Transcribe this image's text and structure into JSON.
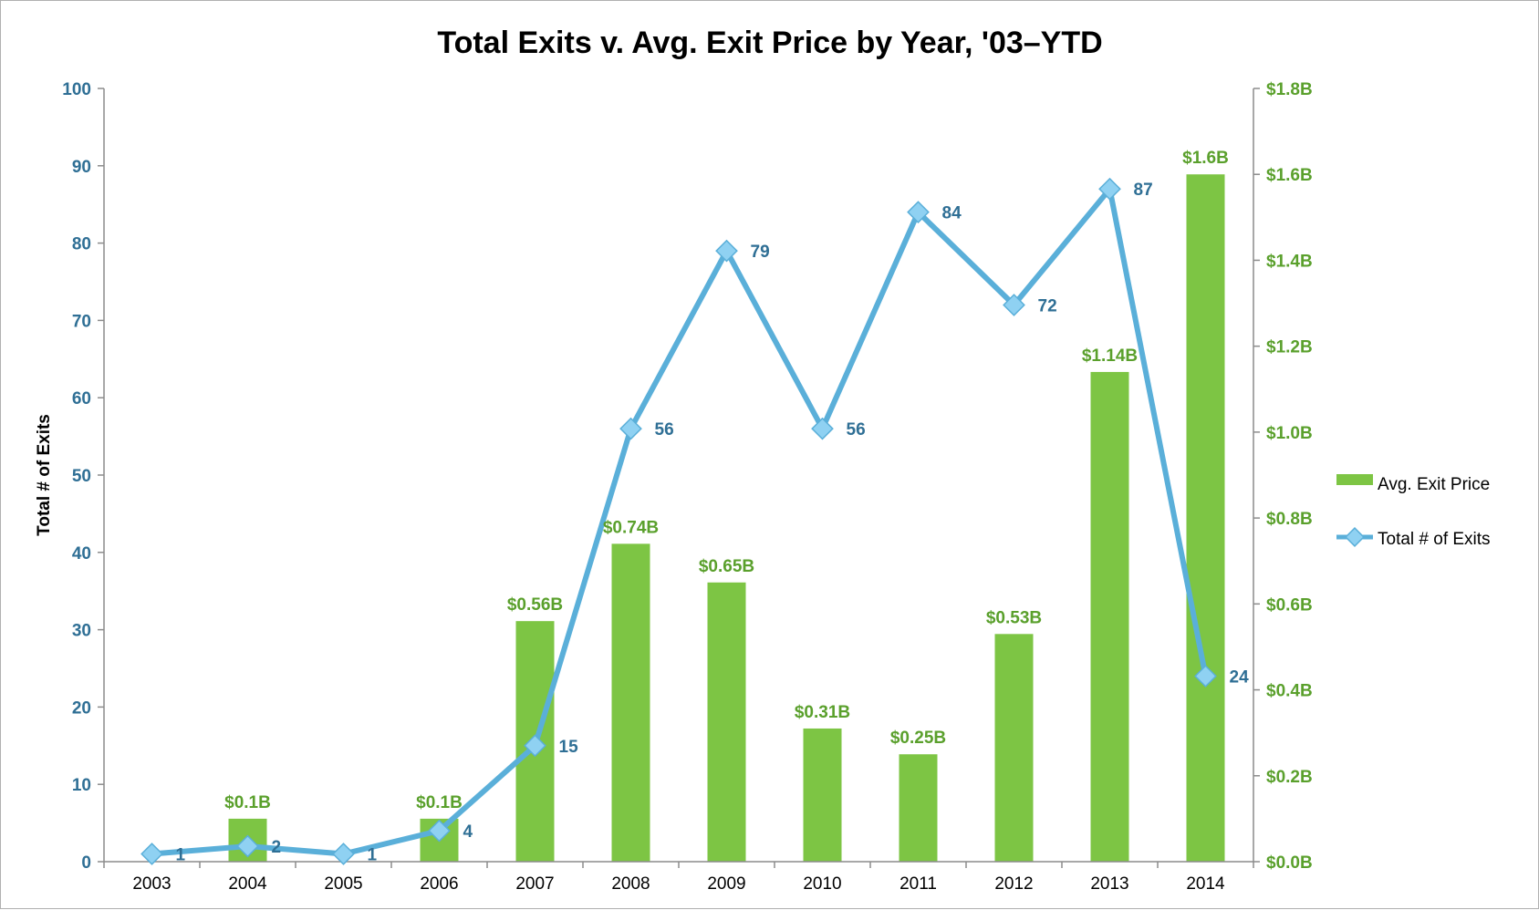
{
  "chart_data": {
    "type": "bar",
    "title": "Total Exits v. Avg. Exit Price by Year, '03–YTD",
    "categories": [
      "2003",
      "2004",
      "2005",
      "2006",
      "2007",
      "2008",
      "2009",
      "2010",
      "2011",
      "2012",
      "2013",
      "2014"
    ],
    "series": [
      {
        "name": "Avg. Exit Price",
        "type": "bar",
        "axis": "right",
        "color": "#7dc544",
        "values": [
          0,
          0.1,
          0,
          0.1,
          0.56,
          0.74,
          0.65,
          0.31,
          0.25,
          0.53,
          1.14,
          1.6
        ],
        "labels": [
          "",
          "$0.1B",
          "",
          "$0.1B",
          "$0.56B",
          "$0.74B",
          "$0.65B",
          "$0.31B",
          "$0.25B",
          "$0.53B",
          "$1.14B",
          "$1.6B"
        ]
      },
      {
        "name": "Total # of Exits",
        "type": "line",
        "axis": "left",
        "color": "#5aafd9",
        "values": [
          1,
          2,
          1,
          4,
          15,
          56,
          79,
          56,
          84,
          72,
          87,
          24
        ],
        "labels": [
          "1",
          "2",
          "1",
          "4",
          "15",
          "56",
          "79",
          "56",
          "84",
          "72",
          "87",
          "24"
        ]
      }
    ],
    "ylabel": "Total # of Exits",
    "ylim": [
      0,
      100
    ],
    "yticks": [
      "0",
      "10",
      "20",
      "30",
      "40",
      "50",
      "60",
      "70",
      "80",
      "90",
      "100"
    ],
    "y2lim": [
      0,
      1.8
    ],
    "y2ticks": [
      "$0.0B",
      "$0.2B",
      "$0.4B",
      "$0.6B",
      "$0.8B",
      "$1.0B",
      "$1.2B",
      "$1.4B",
      "$1.6B",
      "$1.8B"
    ],
    "grid": false,
    "legend": "right"
  }
}
